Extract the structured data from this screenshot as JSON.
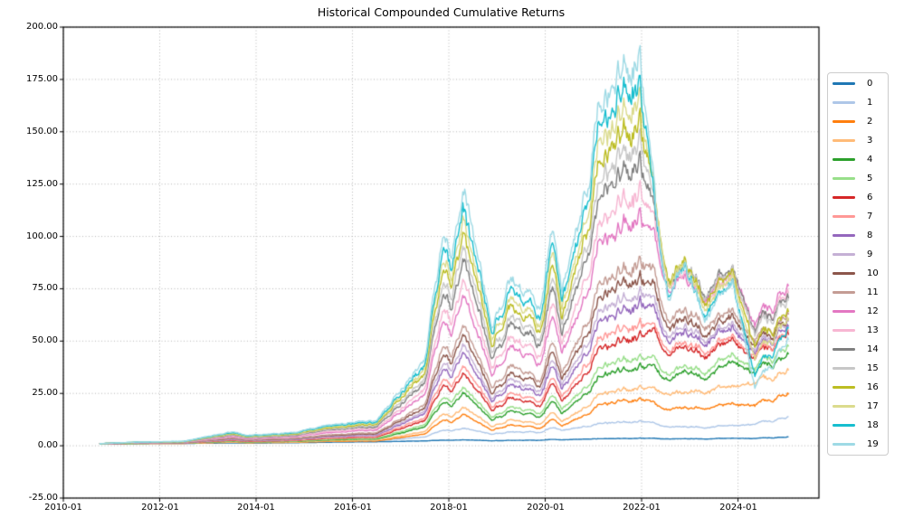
{
  "chart_data": {
    "type": "line",
    "title": "Historical Compounded Cumulative Returns",
    "xlabel": "",
    "ylabel": "",
    "xlim": [
      2010.0,
      2025.68
    ],
    "ylim": [
      -25,
      200
    ],
    "grid": "dotted-gray-both-axes",
    "legend_position": "right-outside",
    "x_unit": "decimal-year",
    "x_ticks": {
      "values": [
        2010,
        2012,
        2014,
        2016,
        2018,
        2020,
        2022,
        2024
      ],
      "labels": [
        "2010-01",
        "2012-01",
        "2014-01",
        "2016-01",
        "2018-01",
        "2020-01",
        "2022-01",
        "2024-01"
      ]
    },
    "y_ticks": {
      "values": [
        200,
        175,
        150,
        125,
        100,
        75,
        50,
        25,
        0,
        -25
      ],
      "labels": [
        "200.00",
        "175.00",
        "150.00",
        "125.00",
        "100.00",
        "75.00",
        "50.00",
        "25.00",
        "0.00",
        "-25.00"
      ]
    },
    "x": [
      2010.75,
      2011.5,
      2012.5,
      2013.5,
      2013.8,
      2014.75,
      2015.5,
      2016.0,
      2016.5,
      2017.0,
      2017.5,
      2017.9,
      2018.05,
      2018.3,
      2018.9,
      2019.3,
      2019.9,
      2020.15,
      2020.35,
      2020.9,
      2021.1,
      2021.65,
      2021.95,
      2022.3,
      2022.55,
      2022.9,
      2023.3,
      2023.9,
      2024.35,
      2024.8,
      2025.05
    ],
    "series": [
      {
        "name": "0",
        "color": "#1f77b4",
        "values": [
          1,
          1.05,
          1.1,
          1.35,
          1.3,
          1.45,
          1.7,
          1.8,
          1.9,
          2.1,
          2.3,
          2.7,
          2.6,
          2.8,
          2.4,
          2.6,
          2.6,
          3.0,
          2.8,
          3.2,
          3.4,
          3.5,
          3.6,
          3.4,
          3.2,
          3.4,
          3.3,
          3.6,
          3.5,
          3.9,
          4.3
        ]
      },
      {
        "name": "1",
        "color": "#aec7e8",
        "values": [
          1,
          1.1,
          1.2,
          1.8,
          1.6,
          1.9,
          2.3,
          2.5,
          2.6,
          3.3,
          4.1,
          7.8,
          7.0,
          8.2,
          5.6,
          6.8,
          6.2,
          8.6,
          7.2,
          9.4,
          10.8,
          11.5,
          11.8,
          10.2,
          8.8,
          9.4,
          8.8,
          9.6,
          10.4,
          12.2,
          14.0
        ]
      },
      {
        "name": "2",
        "color": "#ff7f0e",
        "values": [
          1,
          1.08,
          1.13,
          1.67,
          1.45,
          1.61,
          2.06,
          2.17,
          2.24,
          4.0,
          5.5,
          13.1,
          11.0,
          14.8,
          7.6,
          10.1,
          8.2,
          12.7,
          9.2,
          15.3,
          19.9,
          21.6,
          22.3,
          19.5,
          17.0,
          18.5,
          18.0,
          20.0,
          19.5,
          22.5,
          25.0
        ]
      },
      {
        "name": "3",
        "color": "#ffbb78",
        "values": [
          1,
          1.1,
          1.16,
          1.84,
          1.57,
          1.77,
          2.33,
          2.48,
          2.57,
          4.8,
          6.7,
          16.2,
          13.6,
          18.4,
          9.3,
          12.5,
          10.1,
          15.8,
          11.3,
          19.0,
          24.8,
          27.0,
          27.8,
          26.0,
          24.0,
          26.0,
          26.0,
          28.5,
          30.0,
          33.0,
          36.5
        ]
      },
      {
        "name": "4",
        "color": "#2ca02c",
        "values": [
          1,
          1.14,
          1.22,
          2.16,
          1.78,
          2.06,
          2.84,
          3.04,
          3.16,
          6.2,
          8.8,
          22.0,
          18.4,
          25.0,
          12.4,
          16.8,
          13.6,
          21.4,
          15.2,
          25.8,
          33.8,
          36.8,
          38.0,
          36.0,
          30.0,
          36.0,
          33.0,
          40.0,
          35.0,
          40.0,
          45.0
        ]
      },
      {
        "name": "5",
        "color": "#98df8a",
        "values": [
          1,
          1.16,
          1.25,
          2.31,
          1.88,
          2.19,
          3.07,
          3.3,
          3.43,
          6.9,
          9.8,
          24.6,
          20.6,
          28.0,
          13.8,
          18.8,
          15.2,
          24.0,
          17.0,
          28.9,
          37.9,
          41.3,
          42.6,
          40.0,
          33.0,
          39.0,
          36.0,
          43.0,
          37.0,
          43.0,
          48.0
        ]
      },
      {
        "name": "6",
        "color": "#d62728",
        "values": [
          1,
          1.2,
          1.31,
          2.62,
          2.09,
          2.48,
          3.58,
          3.86,
          4.02,
          8.3,
          11.9,
          30.4,
          25.4,
          34.6,
          17.0,
          23.1,
          18.6,
          29.6,
          20.9,
          35.7,
          46.9,
          51.1,
          52.8,
          52.0,
          42.0,
          48.0,
          44.0,
          50.0,
          42.0,
          48.0,
          55.0
        ]
      },
      {
        "name": "7",
        "color": "#ff9896",
        "values": [
          1,
          1.22,
          1.34,
          2.8,
          2.21,
          2.64,
          3.85,
          4.16,
          4.35,
          9.1,
          13.1,
          33.6,
          28.0,
          38.2,
          18.7,
          25.5,
          20.5,
          32.6,
          23.0,
          39.4,
          51.8,
          56.5,
          58.4,
          55.0,
          44.0,
          50.0,
          46.0,
          52.0,
          43.0,
          49.0,
          56.0
        ]
      },
      {
        "name": "8",
        "color": "#9467bd",
        "values": [
          1,
          1.25,
          1.4,
          3.09,
          2.4,
          2.91,
          4.31,
          4.67,
          4.89,
          10.4,
          15.0,
          38.8,
          32.3,
          44.2,
          21.5,
          29.4,
          23.7,
          37.7,
          26.6,
          45.6,
          60.0,
          65.4,
          67.6,
          62.0,
          48.0,
          55.0,
          50.0,
          56.0,
          45.0,
          52.0,
          58.0
        ]
      },
      {
        "name": "9",
        "color": "#c5b0d5",
        "values": [
          1,
          1.27,
          1.43,
          3.26,
          2.52,
          3.07,
          4.59,
          4.98,
          5.21,
          11.1,
          16.2,
          42.0,
          34.9,
          47.8,
          23.2,
          31.8,
          25.6,
          40.8,
          28.7,
          49.4,
          65.0,
          70.8,
          73.2,
          66.0,
          51.0,
          58.0,
          52.0,
          58.0,
          46.0,
          53.0,
          60.0
        ]
      },
      {
        "name": "10",
        "color": "#8c564b",
        "values": [
          1,
          1.3,
          1.47,
          3.49,
          2.68,
          3.28,
          4.96,
          5.39,
          5.64,
          12.2,
          17.8,
          46.2,
          38.4,
          52.6,
          25.5,
          35.0,
          28.1,
          44.9,
          31.5,
          54.3,
          71.5,
          78.0,
          80.6,
          72.0,
          55.0,
          62.0,
          55.0,
          61.0,
          48.0,
          55.0,
          62.0
        ]
      },
      {
        "name": "11",
        "color": "#c49c94",
        "values": [
          1,
          1.33,
          1.52,
          3.73,
          2.83,
          3.49,
          5.32,
          5.79,
          6.08,
          13.2,
          19.3,
          50.4,
          41.9,
          57.4,
          27.8,
          38.1,
          30.6,
          48.9,
          34.4,
          59.3,
          78.1,
          85.1,
          87.9,
          77.0,
          58.0,
          66.0,
          58.0,
          64.0,
          50.0,
          57.0,
          64.0
        ]
      },
      {
        "name": "12",
        "color": "#e377c2",
        "values": [
          1,
          1.41,
          1.65,
          4.42,
          3.3,
          4.13,
          6.43,
          7.02,
          7.37,
          16.3,
          24.0,
          63.0,
          52.3,
          71.8,
          34.6,
          47.6,
          38.2,
          61.2,
          42.9,
          74.2,
          97.8,
          106.6,
          110.2,
          95.0,
          72.0,
          82.0,
          72.0,
          82.0,
          58.0,
          68.0,
          78.0
        ]
      },
      {
        "name": "13",
        "color": "#f7b6d2",
        "values": [
          1,
          1.46,
          1.72,
          4.77,
          3.54,
          4.45,
          6.98,
          7.63,
          8.02,
          17.9,
          26.4,
          69.3,
          57.6,
          79.0,
          38.1,
          52.4,
          42.0,
          67.3,
          47.2,
          81.6,
          107.6,
          117.4,
          121.3,
          100.0,
          74.0,
          84.0,
          70.0,
          80.0,
          56.0,
          66.0,
          75.0
        ]
      },
      {
        "name": "14",
        "color": "#7f7f7f",
        "values": [
          1,
          1.51,
          1.8,
          5.23,
          3.85,
          4.87,
          7.72,
          8.45,
          8.88,
          20.0,
          29.5,
          77.7,
          64.5,
          88.6,
          42.6,
          58.7,
          47.0,
          75.5,
          52.8,
          91.5,
          120.7,
          131.7,
          136.1,
          105.0,
          76.0,
          88.0,
          74.0,
          84.0,
          56.0,
          65.0,
          73.0
        ]
      },
      {
        "name": "15",
        "color": "#c7c7c7",
        "values": [
          1,
          1.55,
          1.86,
          5.52,
          4.04,
          5.13,
          8.18,
          8.96,
          9.42,
          21.3,
          31.4,
          82.9,
          68.9,
          94.6,
          45.5,
          62.6,
          50.1,
          80.6,
          56.4,
          97.7,
          128.9,
          140.6,
          145.3,
          108.0,
          77.0,
          89.0,
          73.0,
          83.0,
          54.0,
          63.0,
          70.0
        ]
      },
      {
        "name": "16",
        "color": "#bcbd22",
        "values": [
          1,
          1.59,
          1.92,
          5.87,
          4.28,
          5.45,
          8.73,
          9.57,
          10.07,
          22.8,
          33.8,
          89.2,
          74.1,
          101.8,
          48.9,
          67.4,
          53.9,
          86.7,
          60.6,
          105.2,
          138.8,
          151.4,
          156.4,
          110.0,
          76.0,
          90.0,
          70.0,
          82.0,
          48.0,
          58.0,
          66.0
        ]
      },
      {
        "name": "17",
        "color": "#dbdb8d",
        "values": [
          1,
          1.62,
          1.98,
          6.16,
          4.47,
          5.72,
          9.19,
          10.08,
          10.61,
          24.1,
          35.7,
          94.5,
          78.4,
          107.8,
          51.7,
          71.3,
          57.1,
          91.8,
          64.2,
          111.4,
          147.0,
          160.3,
          165.7,
          110.0,
          74.0,
          89.0,
          67.0,
          80.0,
          42.0,
          53.0,
          62.0
        ]
      },
      {
        "name": "18",
        "color": "#17becf",
        "values": [
          1,
          1.66,
          2.03,
          6.45,
          4.67,
          5.98,
          9.65,
          10.59,
          11.15,
          25.4,
          37.7,
          99.7,
          82.8,
          113.8,
          54.6,
          75.3,
          60.2,
          96.9,
          67.7,
          117.6,
          155.2,
          169.3,
          174.9,
          108.0,
          70.0,
          87.0,
          64.0,
          78.0,
          34.0,
          47.0,
          57.0
        ]
      },
      {
        "name": "19",
        "color": "#9edae5",
        "values": [
          1,
          1.7,
          2.1,
          6.8,
          4.9,
          6.3,
          10.2,
          11.2,
          11.8,
          27.0,
          40.0,
          106.0,
          88.0,
          121.0,
          58.0,
          80.0,
          64.0,
          103.0,
          72.0,
          125.0,
          165.0,
          180.0,
          186.0,
          110.0,
          68.0,
          88.0,
          62.0,
          78.0,
          28.0,
          42.0,
          52.0
        ]
      }
    ]
  },
  "style_colors": {
    "grid": "#b0b0b0",
    "spine": "#000000",
    "text": "#000000",
    "legend_border": "#cccccc",
    "background": "#ffffff"
  }
}
